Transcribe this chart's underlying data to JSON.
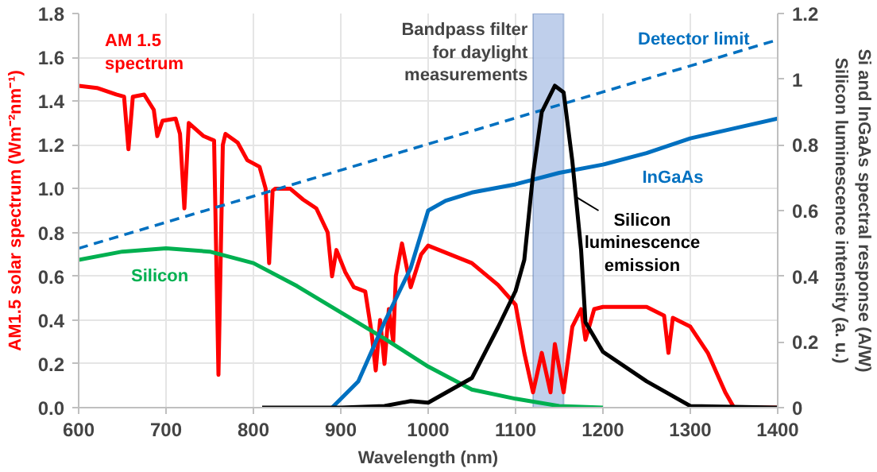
{
  "chart_data": {
    "type": "line",
    "xlabel": "Wavelength (nm)",
    "ylabel": "AM1.5 solar spectrum (Wm⁻²nm⁻¹)",
    "y2label": "Si and InGaAs spectral response (A/W)\nSilicon luminescence intensity (a. u.)",
    "xlim": [
      600,
      1400
    ],
    "xticks": [
      600,
      700,
      800,
      900,
      1000,
      1100,
      1200,
      1300,
      1400
    ],
    "ylim": [
      0,
      1.8
    ],
    "yticks": [
      {
        "value": 0,
        "label": "0.0"
      },
      0.2,
      0.4,
      0.6,
      0.8,
      {
        "value": 1,
        "label": "1.0"
      },
      1.2,
      1.4,
      1.6,
      1.8
    ],
    "y2lim": [
      0,
      1.2
    ],
    "y2ticks": [
      0,
      0.2,
      0.4,
      0.6,
      0.8,
      1,
      1.2
    ],
    "grid": true,
    "series": [
      {
        "name": "AM 1.5\nspectrum",
        "color": "#ff0000",
        "x": [
          600,
          621,
          643,
          652,
          657,
          662,
          675,
          686,
          690,
          696,
          711,
          716,
          721,
          726,
          743,
          755,
          760,
          765,
          768,
          782,
          793,
          807,
          814,
          818,
          822,
          825,
          842,
          857,
          872,
          885,
          890,
          895,
          905,
          915,
          928,
          935,
          940,
          945,
          950,
          955,
          960,
          963,
          970,
          980,
          992,
          1000,
          1050,
          1080,
          1100,
          1110,
          1120,
          1130,
          1140,
          1145,
          1155,
          1165,
          1175,
          1180,
          1190,
          1200,
          1250,
          1270,
          1275,
          1280,
          1300,
          1320,
          1330,
          1340,
          1350,
          1400
        ],
        "values": [
          1.47,
          1.46,
          1.43,
          1.42,
          1.18,
          1.42,
          1.43,
          1.36,
          1.24,
          1.31,
          1.32,
          1.25,
          0.91,
          1.3,
          1.24,
          1.22,
          0.15,
          1.2,
          1.25,
          1.21,
          1.13,
          1.1,
          1.0,
          0.66,
          0.99,
          1.0,
          1.0,
          0.95,
          0.91,
          0.8,
          0.6,
          0.72,
          0.62,
          0.55,
          0.53,
          0.35,
          0.17,
          0.4,
          0.2,
          0.45,
          0.3,
          0.6,
          0.75,
          0.55,
          0.7,
          0.74,
          0.66,
          0.56,
          0.47,
          0.25,
          0.07,
          0.25,
          0.07,
          0.29,
          0.07,
          0.37,
          0.45,
          0.31,
          0.45,
          0.46,
          0.46,
          0.42,
          0.25,
          0.41,
          0.37,
          0.25,
          0.16,
          0.07,
          0,
          0
        ]
      },
      {
        "name": "Silicon",
        "color": "#00b050",
        "axis": "y2",
        "x": [
          600,
          650,
          700,
          750,
          800,
          850,
          900,
          950,
          1000,
          1050,
          1100,
          1150,
          1200
        ],
        "values": [
          0.45,
          0.475,
          0.485,
          0.475,
          0.44,
          0.37,
          0.29,
          0.21,
          0.125,
          0.055,
          0.027,
          0.005,
          0
        ]
      },
      {
        "name": "InGaAs",
        "color": "#0070c0",
        "axis": "y2",
        "x": [
          890,
          920,
          950,
          980,
          1000,
          1020,
          1050,
          1100,
          1150,
          1200,
          1250,
          1300,
          1350,
          1400
        ],
        "values": [
          0,
          0.08,
          0.26,
          0.425,
          0.6,
          0.63,
          0.655,
          0.68,
          0.715,
          0.74,
          0.775,
          0.82,
          0.85,
          0.88
        ]
      },
      {
        "name": "Detector limit",
        "color": "#0070c0",
        "axis": "y2",
        "line_style": "dashed",
        "x": [
          600,
          1400
        ],
        "values": [
          0.485,
          1.12
        ]
      },
      {
        "name": "Silicon\nluminescence\nemission",
        "color": "#000000",
        "axis": "y2",
        "x": [
          810,
          900,
          950,
          980,
          1000,
          1050,
          1080,
          1100,
          1110,
          1120,
          1130,
          1145,
          1155,
          1165,
          1175,
          1180,
          1200,
          1250,
          1300,
          1400
        ],
        "values": [
          0.0,
          0.0,
          0.005,
          0.02,
          0.015,
          0.09,
          0.245,
          0.355,
          0.45,
          0.71,
          0.9,
          0.98,
          0.96,
          0.75,
          0.48,
          0.26,
          0.17,
          0.08,
          0.005,
          0
        ]
      }
    ],
    "bands": [
      {
        "axis": "x",
        "from": 1120,
        "to": 1155,
        "color": "#b4c7e7",
        "label": "Bandpass filter\nfor daylight\nmeasurements"
      }
    ]
  }
}
